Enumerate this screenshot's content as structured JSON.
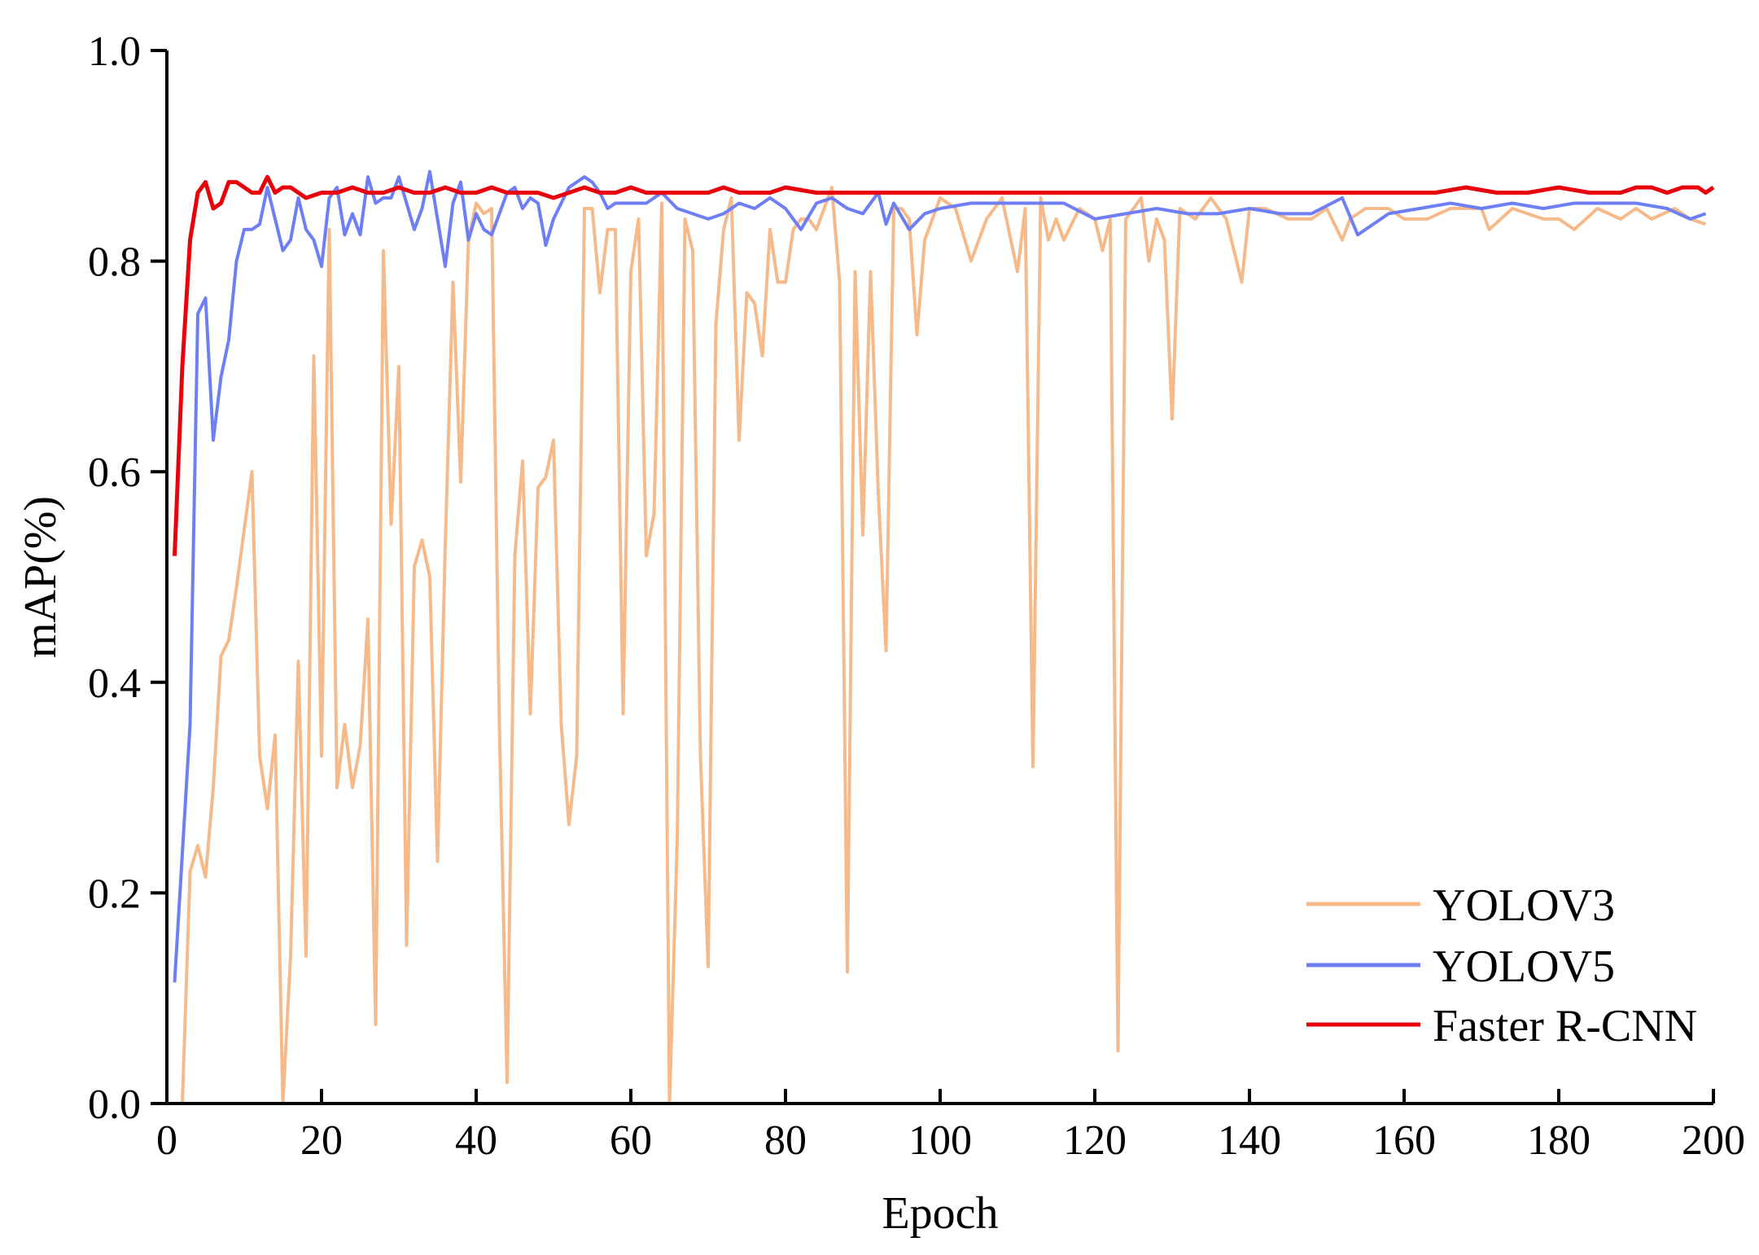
{
  "chart_data": {
    "type": "line",
    "title": "",
    "xlabel": "Epoch",
    "ylabel": "mAP(%)",
    "xlim": [
      0,
      200
    ],
    "ylim": [
      0.0,
      1.0
    ],
    "xticks": [
      0,
      20,
      40,
      60,
      80,
      100,
      120,
      140,
      160,
      180,
      200
    ],
    "yticks": [
      0.0,
      0.2,
      0.4,
      0.6,
      0.8,
      1.0
    ],
    "xtick_labels": [
      "0",
      "20",
      "40",
      "60",
      "80",
      "100",
      "120",
      "140",
      "160",
      "180",
      "200"
    ],
    "ytick_labels": [
      "0.0",
      "0.2",
      "0.4",
      "0.6",
      "0.8",
      "1.0"
    ],
    "grid": false,
    "legend_position": "bottom-right",
    "series": [
      {
        "name": "YOLOV3",
        "color": "#f5b98a",
        "x": [
          1,
          2,
          3,
          4,
          5,
          6,
          7,
          8,
          9,
          10,
          11,
          12,
          13,
          14,
          15,
          16,
          17,
          18,
          19,
          20,
          21,
          22,
          23,
          24,
          25,
          26,
          27,
          28,
          29,
          30,
          31,
          32,
          33,
          34,
          35,
          36,
          37,
          38,
          39,
          40,
          41,
          42,
          43,
          44,
          45,
          46,
          47,
          48,
          49,
          50,
          51,
          52,
          53,
          54,
          55,
          56,
          57,
          58,
          59,
          60,
          61,
          62,
          63,
          64,
          65,
          66,
          67,
          68,
          69,
          70,
          71,
          72,
          73,
          74,
          75,
          76,
          77,
          78,
          79,
          80,
          81,
          82,
          83,
          84,
          85,
          86,
          87,
          88,
          89,
          90,
          91,
          92,
          93,
          94,
          95,
          96,
          97,
          98,
          99,
          100,
          102,
          104,
          106,
          108,
          110,
          111,
          112,
          113,
          114,
          115,
          116,
          118,
          120,
          121,
          122,
          123,
          124,
          126,
          127,
          128,
          129,
          130,
          131,
          133,
          135,
          137,
          139,
          140,
          142,
          145,
          148,
          150,
          152,
          153,
          155,
          158,
          160,
          163,
          166,
          170,
          171,
          174,
          178,
          180,
          182,
          185,
          188,
          190,
          192,
          195,
          197,
          199
        ],
        "y": [
          0.0,
          0.0,
          0.22,
          0.245,
          0.215,
          0.3,
          0.425,
          0.44,
          0.49,
          0.545,
          0.6,
          0.33,
          0.28,
          0.35,
          0.0,
          0.14,
          0.42,
          0.14,
          0.71,
          0.33,
          0.83,
          0.3,
          0.36,
          0.3,
          0.34,
          0.46,
          0.075,
          0.81,
          0.55,
          0.7,
          0.15,
          0.51,
          0.535,
          0.5,
          0.23,
          0.53,
          0.78,
          0.59,
          0.82,
          0.855,
          0.845,
          0.85,
          0.36,
          0.02,
          0.52,
          0.61,
          0.37,
          0.585,
          0.595,
          0.63,
          0.36,
          0.265,
          0.33,
          0.85,
          0.85,
          0.77,
          0.83,
          0.83,
          0.37,
          0.79,
          0.84,
          0.52,
          0.56,
          0.855,
          0.0,
          0.25,
          0.84,
          0.81,
          0.33,
          0.13,
          0.74,
          0.83,
          0.86,
          0.63,
          0.77,
          0.76,
          0.71,
          0.83,
          0.78,
          0.78,
          0.83,
          0.84,
          0.84,
          0.83,
          0.85,
          0.87,
          0.78,
          0.125,
          0.79,
          0.54,
          0.79,
          0.58,
          0.43,
          0.85,
          0.85,
          0.84,
          0.73,
          0.82,
          0.84,
          0.86,
          0.85,
          0.8,
          0.84,
          0.86,
          0.79,
          0.85,
          0.32,
          0.86,
          0.82,
          0.84,
          0.82,
          0.85,
          0.84,
          0.81,
          0.84,
          0.05,
          0.84,
          0.86,
          0.8,
          0.84,
          0.82,
          0.65,
          0.85,
          0.84,
          0.86,
          0.84,
          0.78,
          0.85,
          0.85,
          0.84,
          0.84,
          0.85,
          0.82,
          0.84,
          0.85,
          0.85,
          0.84,
          0.84,
          0.85,
          0.85,
          0.83,
          0.85,
          0.84,
          0.84,
          0.83,
          0.85,
          0.84,
          0.85,
          0.84,
          0.85,
          0.84,
          0.835
        ]
      },
      {
        "name": "YOLOV5",
        "color": "#6e7ff5",
        "x": [
          1,
          3,
          4,
          5,
          6,
          7,
          8,
          9,
          10,
          11,
          12,
          13,
          14,
          15,
          16,
          17,
          18,
          19,
          20,
          21,
          22,
          23,
          24,
          25,
          26,
          27,
          28,
          29,
          30,
          31,
          32,
          33,
          34,
          35,
          36,
          37,
          38,
          39,
          40,
          41,
          42,
          43,
          44,
          45,
          46,
          47,
          48,
          49,
          50,
          52,
          54,
          55,
          56,
          57,
          58,
          60,
          62,
          64,
          66,
          68,
          70,
          72,
          74,
          76,
          78,
          80,
          82,
          84,
          86,
          88,
          90,
          92,
          93,
          94,
          96,
          98,
          100,
          104,
          108,
          112,
          116,
          120,
          124,
          128,
          132,
          136,
          140,
          144,
          148,
          152,
          154,
          158,
          162,
          166,
          170,
          174,
          178,
          182,
          186,
          190,
          194,
          197,
          199
        ],
        "y": [
          0.115,
          0.36,
          0.75,
          0.765,
          0.63,
          0.69,
          0.725,
          0.8,
          0.83,
          0.83,
          0.835,
          0.87,
          0.84,
          0.81,
          0.82,
          0.86,
          0.83,
          0.82,
          0.795,
          0.86,
          0.87,
          0.825,
          0.845,
          0.825,
          0.88,
          0.855,
          0.86,
          0.86,
          0.88,
          0.855,
          0.83,
          0.85,
          0.885,
          0.84,
          0.795,
          0.855,
          0.875,
          0.82,
          0.845,
          0.83,
          0.825,
          0.845,
          0.865,
          0.87,
          0.85,
          0.86,
          0.855,
          0.815,
          0.84,
          0.87,
          0.88,
          0.875,
          0.865,
          0.85,
          0.855,
          0.855,
          0.855,
          0.865,
          0.85,
          0.845,
          0.84,
          0.845,
          0.855,
          0.85,
          0.86,
          0.85,
          0.83,
          0.855,
          0.86,
          0.85,
          0.845,
          0.865,
          0.835,
          0.855,
          0.83,
          0.845,
          0.85,
          0.855,
          0.855,
          0.855,
          0.855,
          0.84,
          0.845,
          0.85,
          0.845,
          0.845,
          0.85,
          0.845,
          0.845,
          0.86,
          0.825,
          0.845,
          0.85,
          0.855,
          0.85,
          0.855,
          0.85,
          0.855,
          0.855,
          0.855,
          0.85,
          0.84,
          0.845
        ]
      },
      {
        "name": "Faster R-CNN",
        "color": "#e8000b",
        "x": [
          1,
          2,
          3,
          4,
          5,
          6,
          7,
          8,
          9,
          10,
          11,
          12,
          13,
          14,
          15,
          16,
          17,
          18,
          20,
          22,
          24,
          26,
          28,
          30,
          32,
          34,
          36,
          38,
          40,
          42,
          44,
          46,
          48,
          50,
          52,
          54,
          56,
          58,
          60,
          62,
          64,
          66,
          68,
          70,
          72,
          74,
          76,
          78,
          80,
          84,
          88,
          92,
          96,
          100,
          104,
          108,
          112,
          116,
          120,
          124,
          128,
          132,
          136,
          140,
          144,
          148,
          152,
          156,
          160,
          164,
          168,
          172,
          176,
          180,
          184,
          186,
          188,
          190,
          192,
          194,
          196,
          198,
          199,
          200
        ],
        "y": [
          0.52,
          0.7,
          0.82,
          0.865,
          0.875,
          0.85,
          0.855,
          0.875,
          0.875,
          0.87,
          0.865,
          0.865,
          0.88,
          0.865,
          0.87,
          0.87,
          0.865,
          0.86,
          0.865,
          0.865,
          0.87,
          0.865,
          0.865,
          0.87,
          0.865,
          0.865,
          0.87,
          0.865,
          0.865,
          0.87,
          0.865,
          0.865,
          0.865,
          0.86,
          0.865,
          0.87,
          0.865,
          0.865,
          0.87,
          0.865,
          0.865,
          0.865,
          0.865,
          0.865,
          0.87,
          0.865,
          0.865,
          0.865,
          0.87,
          0.865,
          0.865,
          0.865,
          0.865,
          0.865,
          0.865,
          0.865,
          0.865,
          0.865,
          0.865,
          0.865,
          0.865,
          0.865,
          0.865,
          0.865,
          0.865,
          0.865,
          0.865,
          0.865,
          0.865,
          0.865,
          0.87,
          0.865,
          0.865,
          0.87,
          0.865,
          0.865,
          0.865,
          0.87,
          0.87,
          0.865,
          0.87,
          0.87,
          0.865,
          0.87
        ]
      }
    ]
  }
}
